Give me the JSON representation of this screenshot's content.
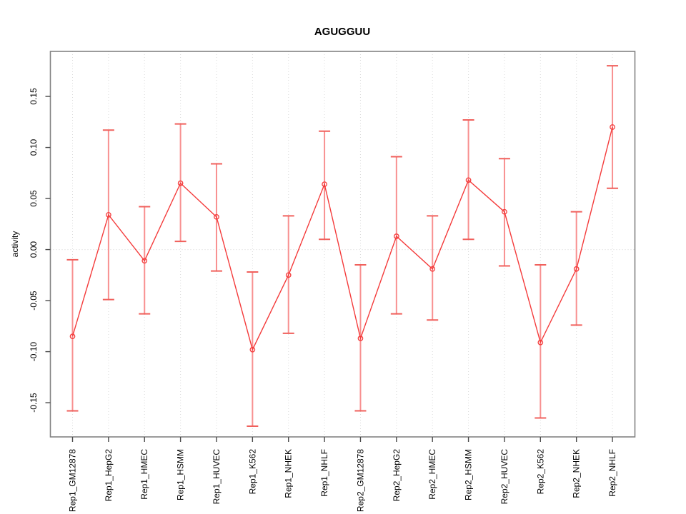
{
  "chart_data": {
    "type": "line",
    "title": "AGUGGUU",
    "xlabel": "",
    "ylabel": "activity",
    "grid": "vertical dotted gridline at every category; horizontal dotted line at y=0 only",
    "legend": "none",
    "point_marker": "open-circle",
    "categories": [
      "Rep1_GM12878",
      "Rep1_HepG2",
      "Rep1_HMEC",
      "Rep1_HSMM",
      "Rep1_HUVEC",
      "Rep1_K562",
      "Rep1_NHEK",
      "Rep1_NHLF",
      "Rep2_GM12878",
      "Rep2_HepG2",
      "Rep2_HMEC",
      "Rep2_HSMM",
      "Rep2_HUVEC",
      "Rep2_K562",
      "Rep2_NHEK",
      "Rep2_NHLF"
    ],
    "series": [
      {
        "name": "activity",
        "values": [
          -0.085,
          0.034,
          -0.011,
          0.065,
          0.032,
          -0.098,
          -0.025,
          0.064,
          -0.087,
          0.013,
          -0.019,
          0.068,
          0.037,
          -0.091,
          -0.019,
          0.12
        ],
        "error_high": [
          -0.01,
          0.117,
          0.042,
          0.123,
          0.084,
          -0.022,
          0.033,
          0.116,
          -0.015,
          0.091,
          0.033,
          0.127,
          0.089,
          -0.015,
          0.037,
          0.18
        ],
        "error_low": [
          -0.158,
          -0.049,
          -0.063,
          0.008,
          -0.021,
          -0.173,
          -0.082,
          0.01,
          -0.158,
          -0.063,
          -0.069,
          0.01,
          -0.016,
          -0.165,
          -0.074,
          0.06
        ]
      }
    ],
    "yticks": [
      {
        "v": 0.15,
        "label": "0.15"
      },
      {
        "v": 0.1,
        "label": "0.10"
      },
      {
        "v": 0.05,
        "label": "0.05"
      },
      {
        "v": 0.0,
        "label": "0.00"
      },
      {
        "v": -0.05,
        "label": "-0.05"
      },
      {
        "v": -0.1,
        "label": "-0.10"
      },
      {
        "v": -0.15,
        "label": "-0.15"
      }
    ],
    "ylim": [
      -0.1835,
      0.1941
    ],
    "colors": {
      "line": "#f43b3b",
      "error_stem": "#f89090",
      "error_cap": "#f0605c",
      "grid": "#dadada",
      "zero_line": "#d6d6d6",
      "box": "#828282",
      "tick": "#4a4a4a",
      "text": "#000000",
      "background": "#ffffff"
    }
  }
}
